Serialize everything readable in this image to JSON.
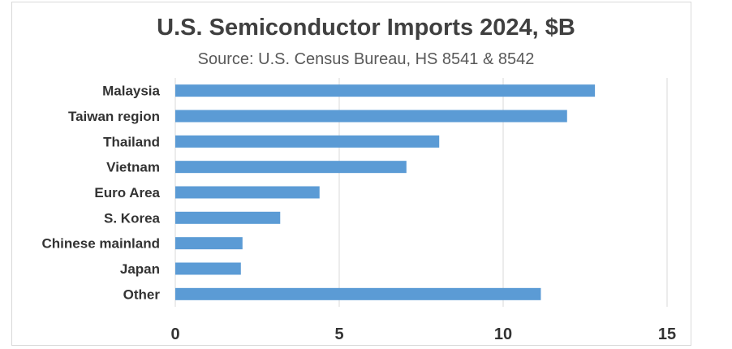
{
  "chart_data": {
    "type": "bar",
    "orientation": "horizontal",
    "title": "U.S. Semiconductor Imports 2024, $B",
    "subtitle": "Source: U.S. Census Bureau, HS 8541 & 8542",
    "categories": [
      "Malaysia",
      "Taiwan region",
      "Thailand",
      "Vietnam",
      "Euro Area",
      "S. Korea",
      "Chinese mainland",
      "Japan",
      "Other"
    ],
    "values": [
      12.8,
      11.95,
      8.05,
      7.05,
      4.4,
      3.2,
      2.05,
      2.0,
      11.15
    ],
    "xlim": [
      0,
      15
    ],
    "xticks": [
      0,
      5,
      10,
      15
    ],
    "grid": "vertical",
    "bar_color": "#5b9bd5"
  }
}
